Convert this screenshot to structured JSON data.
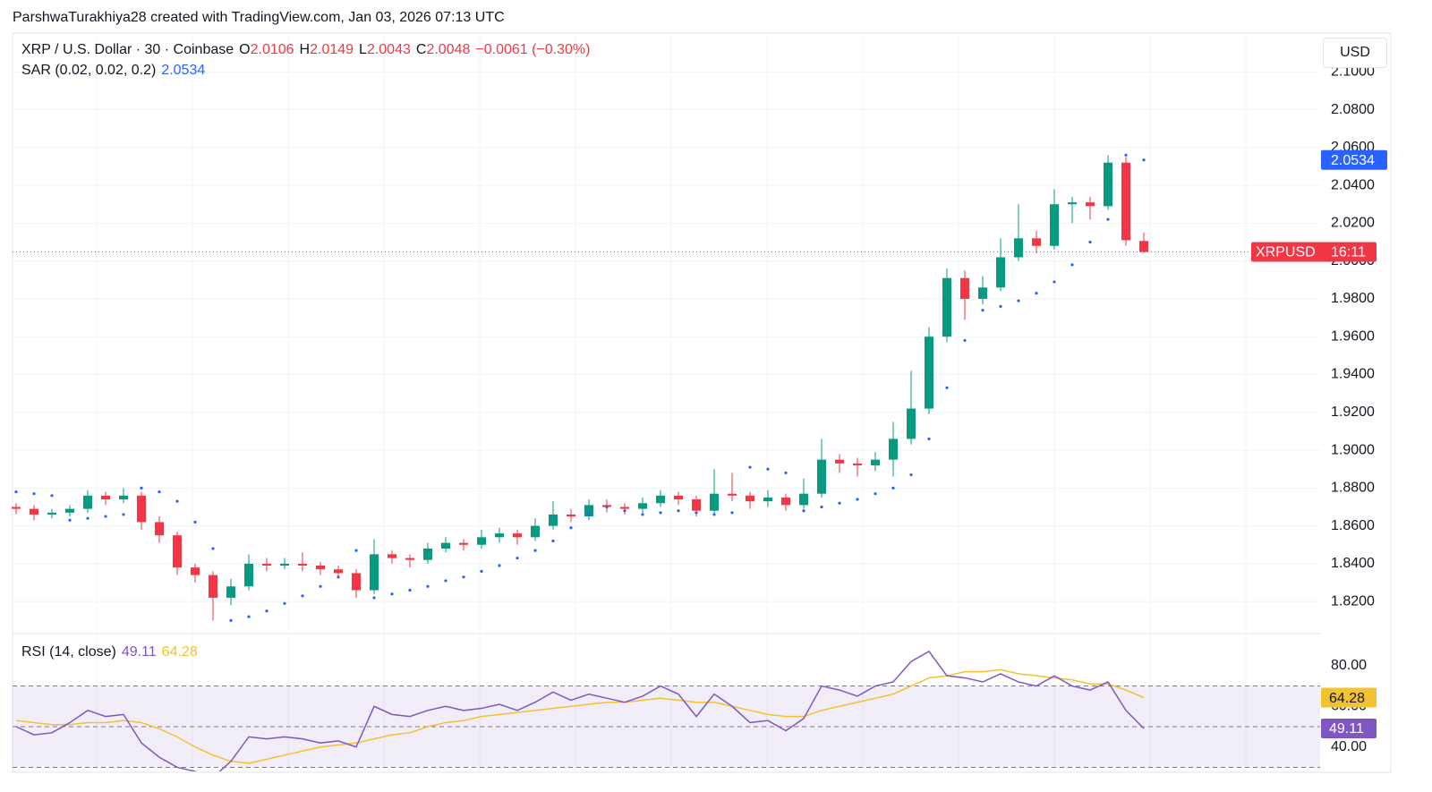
{
  "chart_data": {
    "type": "candlestick",
    "credit": "ParshwaTurakhiya28 created with TradingView.com, Jan 03, 2026 07:13 UTC",
    "symbol": "XRP / U.S. Dollar · 30 · Coinbase",
    "o_label": "O",
    "h_label": "H",
    "l_label": "L",
    "c_label": "C",
    "change": "−0.0061 (−0.30%)",
    "currency": "USD",
    "ticker": "XRPUSD",
    "countdown": "16:11",
    "sar_title": "SAR (0.02, 0.02, 0.2)",
    "up_color": "#089981",
    "down_color": "#f23645",
    "sar_color": "#2962ff",
    "ylim": [
      1.804,
      2.12
    ],
    "yticks": [
      {
        "value": 1.82,
        "label": "1.8200"
      },
      {
        "value": 1.84,
        "label": "1.8400"
      },
      {
        "value": 1.86,
        "label": "1.8600"
      },
      {
        "value": 1.88,
        "label": "1.8800"
      },
      {
        "value": 1.9,
        "label": "1.9000"
      },
      {
        "value": 1.92,
        "label": "1.9200"
      },
      {
        "value": 1.94,
        "label": "1.9400"
      },
      {
        "value": 1.96,
        "label": "1.9600"
      },
      {
        "value": 1.98,
        "label": "1.9800"
      },
      {
        "value": 2.0,
        "label": "2.0000"
      },
      {
        "value": 2.02,
        "label": "2.0200"
      },
      {
        "value": 2.04,
        "label": "2.0400"
      },
      {
        "value": 2.06,
        "label": "2.0600"
      },
      {
        "value": 2.08,
        "label": "2.0800"
      },
      {
        "value": 2.1,
        "label": "2.1000"
      }
    ],
    "ohlc": [
      [
        1.87,
        1.872,
        1.866,
        1.869
      ],
      [
        1.869,
        1.871,
        1.863,
        1.866
      ],
      [
        1.866,
        1.869,
        1.864,
        1.867
      ],
      [
        1.867,
        1.871,
        1.865,
        1.869
      ],
      [
        1.869,
        1.879,
        1.867,
        1.876
      ],
      [
        1.876,
        1.878,
        1.871,
        1.874
      ],
      [
        1.874,
        1.88,
        1.872,
        1.876
      ],
      [
        1.876,
        1.878,
        1.858,
        1.862
      ],
      [
        1.862,
        1.865,
        1.851,
        1.855
      ],
      [
        1.855,
        1.857,
        1.834,
        1.838
      ],
      [
        1.838,
        1.84,
        1.83,
        1.834
      ],
      [
        1.834,
        1.836,
        1.81,
        1.822
      ],
      [
        1.822,
        1.832,
        1.818,
        1.828
      ],
      [
        1.828,
        1.845,
        1.826,
        1.84
      ],
      [
        1.84,
        1.843,
        1.836,
        1.839
      ],
      [
        1.839,
        1.843,
        1.837,
        1.84
      ],
      [
        1.84,
        1.846,
        1.836,
        1.839
      ],
      [
        1.839,
        1.841,
        1.834,
        1.837
      ],
      [
        1.837,
        1.839,
        1.832,
        1.835
      ],
      [
        1.835,
        1.837,
        1.822,
        1.826
      ],
      [
        1.826,
        1.853,
        1.824,
        1.845
      ],
      [
        1.845,
        1.847,
        1.84,
        1.843
      ],
      [
        1.843,
        1.845,
        1.838,
        1.842
      ],
      [
        1.842,
        1.851,
        1.84,
        1.848
      ],
      [
        1.848,
        1.854,
        1.846,
        1.851
      ],
      [
        1.851,
        1.853,
        1.847,
        1.85
      ],
      [
        1.85,
        1.858,
        1.848,
        1.854
      ],
      [
        1.854,
        1.859,
        1.851,
        1.856
      ],
      [
        1.856,
        1.858,
        1.85,
        1.854
      ],
      [
        1.854,
        1.864,
        1.852,
        1.86
      ],
      [
        1.86,
        1.873,
        1.858,
        1.866
      ],
      [
        1.866,
        1.869,
        1.862,
        1.865
      ],
      [
        1.865,
        1.874,
        1.863,
        1.871
      ],
      [
        1.871,
        1.874,
        1.867,
        1.87
      ],
      [
        1.87,
        1.872,
        1.866,
        1.869
      ],
      [
        1.869,
        1.875,
        1.866,
        1.872
      ],
      [
        1.872,
        1.879,
        1.87,
        1.876
      ],
      [
        1.876,
        1.878,
        1.871,
        1.874
      ],
      [
        1.874,
        1.876,
        1.865,
        1.868
      ],
      [
        1.868,
        1.89,
        1.866,
        1.877
      ],
      [
        1.877,
        1.888,
        1.873,
        1.876
      ],
      [
        1.876,
        1.878,
        1.869,
        1.873
      ],
      [
        1.873,
        1.879,
        1.87,
        1.875
      ],
      [
        1.875,
        1.877,
        1.868,
        1.871
      ],
      [
        1.871,
        1.885,
        1.869,
        1.877
      ],
      [
        1.877,
        1.906,
        1.875,
        1.895
      ],
      [
        1.895,
        1.898,
        1.888,
        1.893
      ],
      [
        1.893,
        1.896,
        1.886,
        1.892
      ],
      [
        1.892,
        1.899,
        1.889,
        1.895
      ],
      [
        1.895,
        1.915,
        1.886,
        1.906
      ],
      [
        1.906,
        1.942,
        1.903,
        1.922
      ],
      [
        1.922,
        1.965,
        1.919,
        1.96
      ],
      [
        1.96,
        1.996,
        1.957,
        1.991
      ],
      [
        1.991,
        1.995,
        1.969,
        1.98
      ],
      [
        1.98,
        1.992,
        1.977,
        1.986
      ],
      [
        1.986,
        2.012,
        1.984,
        2.002
      ],
      [
        2.002,
        2.03,
        2.0,
        2.012
      ],
      [
        2.012,
        2.016,
        2.004,
        2.008
      ],
      [
        2.008,
        2.038,
        2.006,
        2.03
      ],
      [
        2.03,
        2.034,
        2.02,
        2.031
      ],
      [
        2.031,
        2.034,
        2.022,
        2.029
      ],
      [
        2.029,
        2.056,
        2.027,
        2.052
      ],
      [
        2.052,
        2.055,
        2.008,
        2.011
      ],
      [
        2.0106,
        2.0149,
        2.0043,
        2.0048
      ]
    ],
    "sar": [
      1.878,
      1.877,
      1.876,
      1.863,
      1.864,
      1.865,
      1.866,
      1.88,
      1.878,
      1.873,
      1.862,
      1.848,
      1.81,
      1.812,
      1.815,
      1.819,
      1.823,
      1.828,
      1.833,
      1.847,
      1.822,
      1.824,
      1.826,
      1.828,
      1.831,
      1.833,
      1.836,
      1.839,
      1.843,
      1.847,
      1.852,
      1.859,
      1.866,
      1.87,
      1.868,
      1.866,
      1.867,
      1.868,
      1.867,
      1.866,
      1.867,
      1.891,
      1.89,
      1.888,
      1.868,
      1.87,
      1.872,
      1.874,
      1.877,
      1.88,
      1.887,
      1.906,
      1.933,
      1.958,
      1.974,
      1.976,
      1.979,
      1.983,
      1.989,
      1.998,
      2.01,
      2.022,
      2.056,
      2.0534
    ],
    "rsi": {
      "title": "RSI (14, close)",
      "color": "#7e57c2",
      "ma_color": "#f2c230",
      "ylim": [
        28,
        94
      ],
      "yticks": [
        {
          "value": 40,
          "label": "40.00"
        },
        {
          "value": 60,
          "label": "60.00"
        },
        {
          "value": 80,
          "label": "80.00"
        }
      ],
      "levels": [
        30,
        50,
        70
      ],
      "values": [
        50,
        46,
        47,
        52,
        58,
        55,
        56,
        42,
        35,
        30,
        28,
        25,
        33,
        45,
        44,
        45,
        44,
        42,
        43,
        40,
        60,
        56,
        55,
        58,
        60,
        58,
        59,
        61,
        58,
        62,
        67,
        63,
        66,
        64,
        62,
        65,
        70,
        66,
        55,
        66,
        60,
        52,
        53,
        48,
        54,
        70,
        68,
        65,
        70,
        72,
        82,
        87,
        75,
        74,
        72,
        76,
        72,
        70,
        75,
        70,
        68,
        72,
        58,
        49.11
      ],
      "ma": [
        53,
        52,
        51,
        51,
        52,
        52,
        53,
        52,
        49,
        45,
        40,
        36,
        33,
        32,
        34,
        36,
        38,
        40,
        41,
        42,
        44,
        46,
        47,
        50,
        52,
        53,
        55,
        56,
        57,
        58,
        59,
        60,
        61,
        62,
        62,
        63,
        64,
        63,
        62,
        62,
        60,
        58,
        56,
        55,
        55,
        58,
        60,
        62,
        64,
        66,
        70,
        74,
        75,
        77,
        77,
        78,
        76,
        75,
        74,
        73,
        71,
        71,
        68,
        64.28
      ]
    }
  }
}
